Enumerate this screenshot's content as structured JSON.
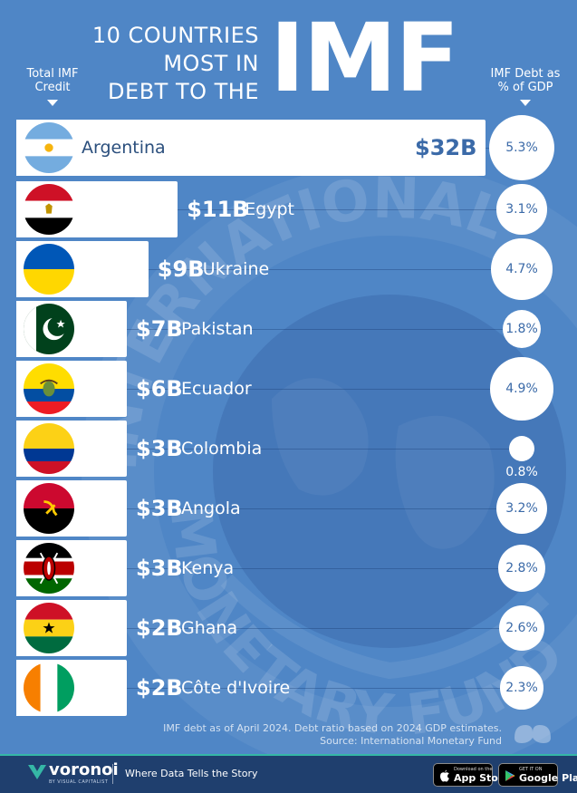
{
  "title": {
    "line1": "10 COUNTRIES",
    "line2": "MOST IN",
    "line3": "DEBT TO THE",
    "highlight": "IMF"
  },
  "column_headers": {
    "left": [
      "Total IMF",
      "Credit"
    ],
    "right": [
      "IMF Debt as",
      "% of GDP"
    ]
  },
  "chart_data": {
    "type": "bar",
    "categories": [
      "Argentina",
      "Egypt",
      "Ukraine",
      "Pakistan",
      "Ecuador",
      "Colombia",
      "Angola",
      "Kenya",
      "Ghana",
      "Côte d'Ivoire"
    ],
    "series": [
      {
        "values": [
          32,
          11,
          9,
          7,
          6,
          3,
          3,
          3,
          2,
          2
        ]
      },
      {
        "values": [
          5.3,
          3.1,
          4.7,
          1.8,
          4.9,
          0.8,
          3.2,
          2.8,
          2.6,
          2.3
        ]
      }
    ],
    "value_labels": [
      "$32B",
      "$11B",
      "$9B",
      "$7B",
      "$6B",
      "$3B",
      "$3B",
      "$3B",
      "$2B",
      "$2B"
    ],
    "gdp_labels": [
      "5.3%",
      "3.1%",
      "4.7%",
      "1.8%",
      "4.9%",
      "0.8%",
      "3.2%",
      "2.8%",
      "2.6%",
      "2.3%"
    ],
    "flag_icons": [
      "argentina-flag-icon",
      "egypt-flag-icon",
      "ukraine-flag-icon",
      "pakistan-flag-icon",
      "ecuador-flag-icon",
      "colombia-flag-icon",
      "angola-flag-icon",
      "kenya-flag-icon",
      "ghana-flag-icon",
      "cote-divoire-flag-icon"
    ],
    "bar_color": "#ffffff",
    "background_color": "#4f86c6"
  },
  "seal_text": [
    "INTERNATIONAL",
    "MONETARY FUND"
  ],
  "footnote": {
    "line1": "IMF debt as of April 2024. Debt ratio based on 2024 GDP estimates.",
    "line2": "Source: International Monetary Fund"
  },
  "footer": {
    "brand": "voronoi",
    "brand_sub": "BY VISUAL CAPITALIST",
    "tagline": "Where Data Tells the Story",
    "app_store": {
      "top": "Download on the",
      "main": "App Store"
    },
    "google_play": {
      "top": "GET IT ON",
      "main": "Google Play"
    },
    "accent_color": "#35b7a6",
    "footer_color": "#1f3f6e"
  }
}
